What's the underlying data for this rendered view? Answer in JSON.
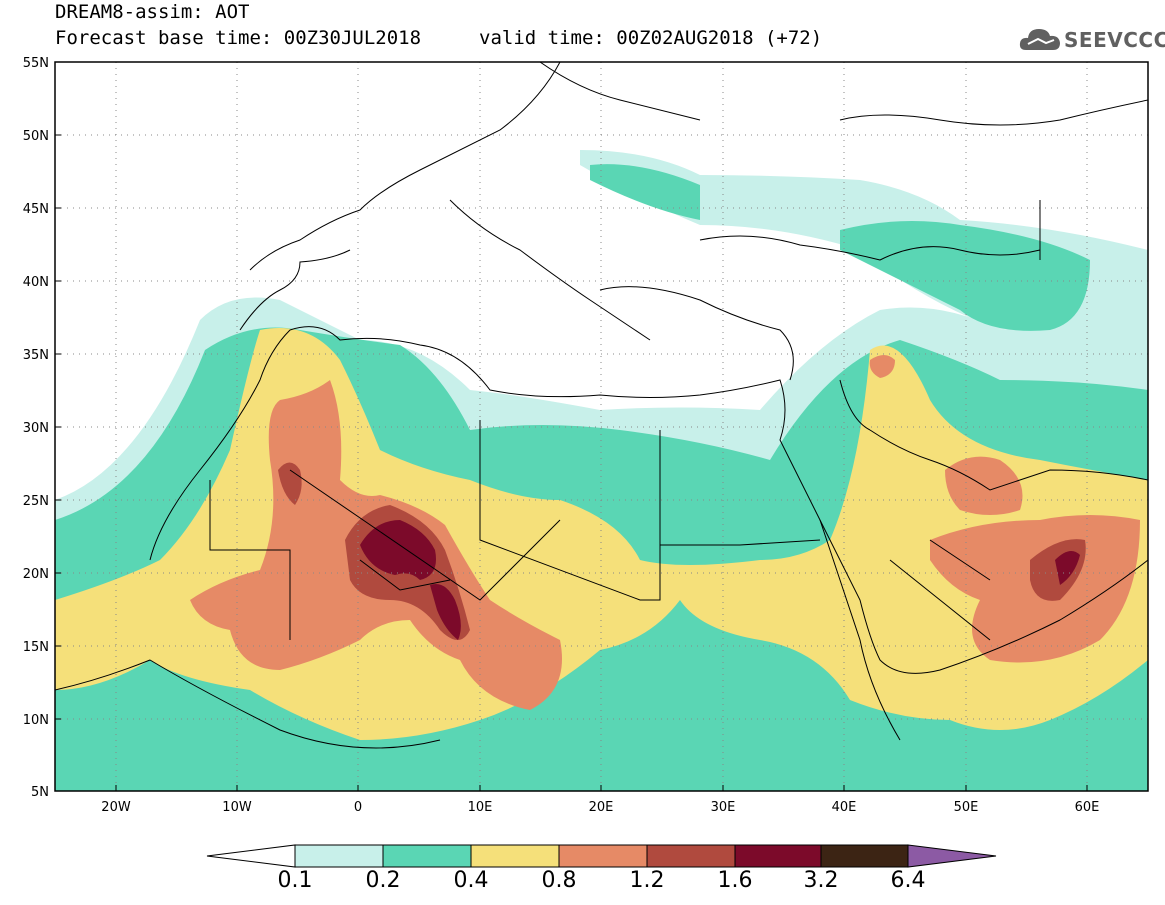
{
  "header": {
    "title_line1": "DREAM8-assim: AOT",
    "title_line2": "Forecast base time: 00Z30JUL2018",
    "valid_time": "valid time: 00Z02AUG2018 (+72)",
    "logo_text": "SEEVCCC"
  },
  "map": {
    "projection": "lat-lon",
    "lon_range": [
      -25,
      65
    ],
    "lat_range": [
      5,
      55
    ],
    "lat_labels": [
      "5N",
      "10N",
      "15N",
      "20N",
      "25N",
      "30N",
      "35N",
      "40N",
      "45N",
      "50N",
      "55N"
    ],
    "lon_labels": [
      "20W",
      "10W",
      "0",
      "10E",
      "20E",
      "30E",
      "40E",
      "50E",
      "60E"
    ],
    "grid": "dotted"
  },
  "colorbar": {
    "labels": [
      "0.1",
      "0.2",
      "0.4",
      "0.8",
      "1.2",
      "1.6",
      "3.2",
      "6.4"
    ],
    "colors": [
      "#ffffff",
      "#c8f0ea",
      "#5ad6b4",
      "#f5e07a",
      "#e68a66",
      "#b04a3e",
      "#7c0a2a",
      "#3c2414",
      "#8c5aa4"
    ]
  }
}
